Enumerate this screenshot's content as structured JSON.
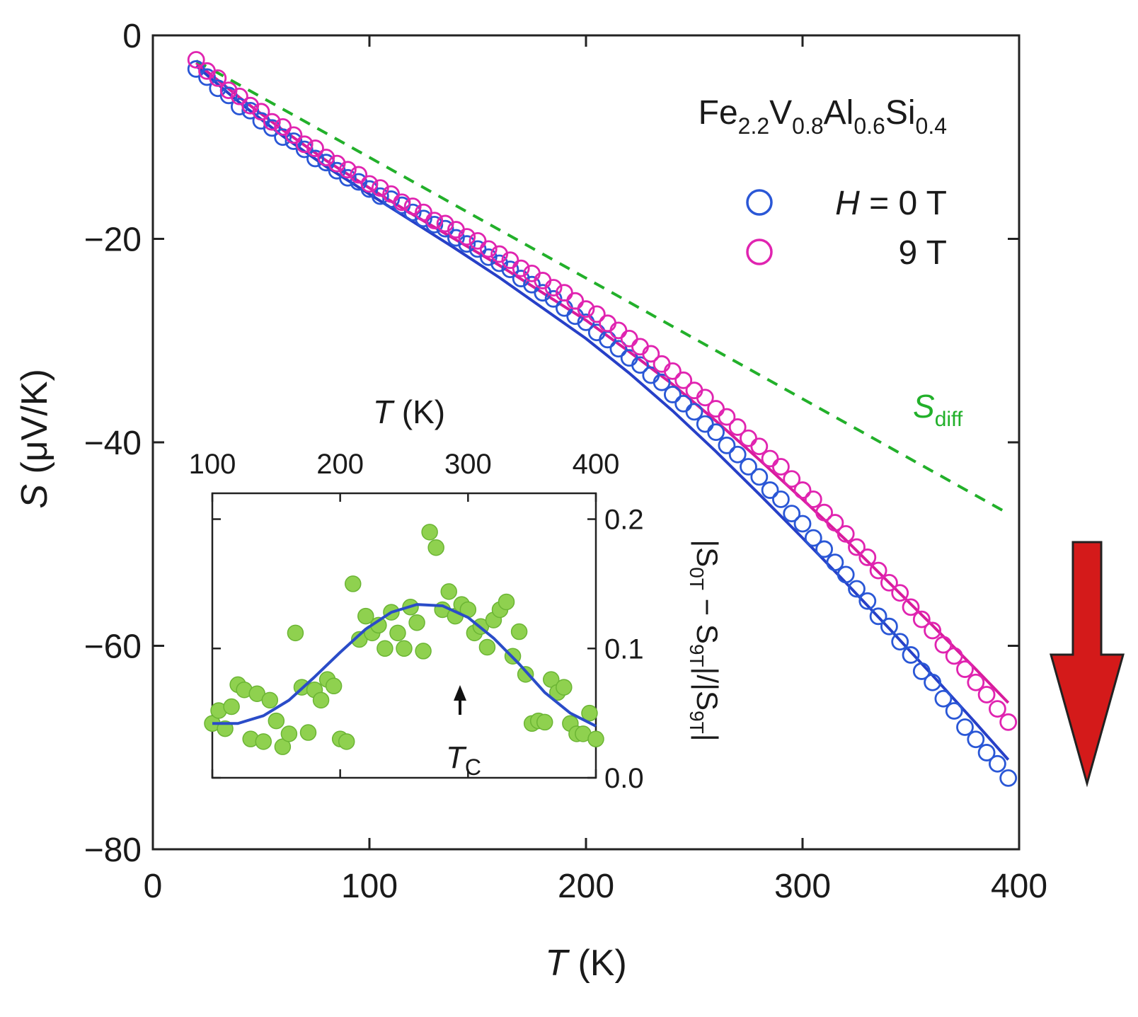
{
  "chart_data": [
    {
      "type": "scatter",
      "xlabel": "T (K)",
      "ylabel": "S (μV/K)",
      "xlim": [
        0,
        400
      ],
      "ylim": [
        -80,
        0
      ],
      "x_ticks": [
        0,
        100,
        200,
        300,
        400
      ],
      "y_ticks": [
        0,
        -20,
        -40,
        -60,
        -80
      ],
      "grid": false,
      "legend": "top-right",
      "annotations": {
        "compound": {
          "base": [
            "Fe",
            "V",
            "Al",
            "Si"
          ],
          "sub": [
            "2.2",
            "0.8",
            "0.6",
            "0.4"
          ]
        },
        "s_diff": {
          "main": "S",
          "sub": "diff",
          "color": "#22b02a"
        }
      },
      "legend_entries": [
        {
          "prefix": "H",
          "label": " = 0 T",
          "color": "#2a57d6"
        },
        {
          "prefix": "",
          "label": "9 T",
          "color": "#e024b0"
        }
      ],
      "series": [
        {
          "name": "H = 0 T",
          "color": "#2a57d6",
          "marker": "open-circle",
          "x": [
            20,
            25,
            30,
            35,
            40,
            45,
            50,
            55,
            60,
            65,
            70,
            75,
            80,
            85,
            90,
            95,
            100,
            105,
            110,
            115,
            120,
            125,
            130,
            135,
            140,
            145,
            150,
            155,
            160,
            165,
            170,
            175,
            180,
            185,
            190,
            195,
            200,
            205,
            210,
            215,
            220,
            225,
            230,
            235,
            240,
            245,
            250,
            255,
            260,
            265,
            270,
            275,
            280,
            285,
            290,
            295,
            300,
            305,
            310,
            315,
            320,
            325,
            330,
            335,
            340,
            345,
            350,
            355,
            360,
            365,
            370,
            375,
            380,
            385,
            390,
            395
          ],
          "y": [
            -3.3,
            -4.1,
            -5.2,
            -5.9,
            -7.0,
            -7.4,
            -8.4,
            -9.1,
            -10.0,
            -10.4,
            -11.2,
            -12.1,
            -12.5,
            -13.3,
            -14.0,
            -14.4,
            -15.1,
            -15.8,
            -16.1,
            -16.7,
            -17.4,
            -18.0,
            -18.6,
            -19.0,
            -19.9,
            -20.5,
            -21.0,
            -21.8,
            -22.4,
            -23.0,
            -23.9,
            -24.5,
            -25.3,
            -25.9,
            -26.8,
            -27.6,
            -28.2,
            -29.2,
            -29.9,
            -30.8,
            -31.7,
            -32.4,
            -33.4,
            -34.1,
            -35.3,
            -36.2,
            -37.0,
            -38.2,
            -39.0,
            -40.3,
            -41.2,
            -42.4,
            -43.4,
            -44.7,
            -45.6,
            -47.0,
            -48.0,
            -49.4,
            -50.5,
            -51.8,
            -53.0,
            -54.4,
            -55.6,
            -57.1,
            -58.1,
            -59.6,
            -60.9,
            -62.5,
            -63.6,
            -65.2,
            -66.4,
            -68.0,
            -69.2,
            -70.5,
            -71.6,
            -73.0
          ]
        },
        {
          "name": "9 T",
          "color": "#e024b0",
          "marker": "open-circle",
          "x": [
            20,
            25,
            30,
            35,
            40,
            45,
            50,
            55,
            60,
            65,
            70,
            75,
            80,
            85,
            90,
            95,
            100,
            105,
            110,
            115,
            120,
            125,
            130,
            135,
            140,
            145,
            150,
            155,
            160,
            165,
            170,
            175,
            180,
            185,
            190,
            195,
            200,
            205,
            210,
            215,
            220,
            225,
            230,
            235,
            240,
            245,
            250,
            255,
            260,
            265,
            270,
            275,
            280,
            285,
            290,
            295,
            300,
            305,
            310,
            315,
            320,
            325,
            330,
            335,
            340,
            345,
            350,
            355,
            360,
            365,
            370,
            375,
            380,
            385,
            390,
            395
          ],
          "y": [
            -2.4,
            -3.5,
            -4.2,
            -5.4,
            -6.0,
            -6.9,
            -7.5,
            -8.5,
            -9.0,
            -9.8,
            -10.7,
            -11.1,
            -12.0,
            -12.6,
            -13.2,
            -13.7,
            -14.6,
            -15.0,
            -15.6,
            -16.4,
            -16.8,
            -17.4,
            -18.2,
            -18.5,
            -19.1,
            -19.8,
            -20.2,
            -21.0,
            -21.5,
            -22.1,
            -22.9,
            -23.4,
            -24.1,
            -24.8,
            -25.3,
            -26.1,
            -26.9,
            -27.4,
            -28.3,
            -29.0,
            -29.8,
            -30.6,
            -31.3,
            -32.3,
            -33.0,
            -33.9,
            -34.9,
            -35.6,
            -36.7,
            -37.5,
            -38.5,
            -39.6,
            -40.4,
            -41.6,
            -42.4,
            -43.6,
            -44.7,
            -45.6,
            -46.9,
            -47.9,
            -49.0,
            -50.3,
            -51.3,
            -52.6,
            -53.8,
            -54.8,
            -56.2,
            -57.4,
            -58.5,
            -59.9,
            -61.0,
            -62.3,
            -63.6,
            -64.8,
            -66.2,
            -67.5
          ]
        },
        {
          "name": "",
          "style": "solid-line",
          "color": "#2740c8",
          "x": [
            20,
            40,
            60,
            80,
            100,
            120,
            140,
            160,
            180,
            200,
            220,
            240,
            260,
            280,
            300,
            320,
            340,
            360,
            380,
            395
          ],
          "y": [
            -3.0,
            -6.6,
            -9.9,
            -12.9,
            -15.6,
            -18.3,
            -21.0,
            -23.8,
            -26.8,
            -29.8,
            -33.2,
            -36.9,
            -40.9,
            -45.1,
            -49.4,
            -53.8,
            -58.3,
            -62.9,
            -67.6,
            -71.2
          ]
        },
        {
          "name": "",
          "style": "solid-line",
          "color": "#d81c9c",
          "x": [
            20,
            40,
            60,
            80,
            100,
            120,
            140,
            160,
            180,
            200,
            220,
            240,
            260,
            280,
            300,
            320,
            340,
            360,
            380,
            395
          ],
          "y": [
            -2.7,
            -6.1,
            -9.3,
            -12.3,
            -15.0,
            -17.6,
            -20.1,
            -22.6,
            -25.3,
            -28.0,
            -31.1,
            -34.3,
            -37.9,
            -41.7,
            -45.6,
            -49.6,
            -53.8,
            -58.0,
            -62.3,
            -65.6
          ]
        },
        {
          "name": "",
          "style": "dashed-line",
          "color": "#22b02a",
          "x": [
            20,
            395
          ],
          "y": [
            -2.5,
            -47.0
          ]
        }
      ]
    },
    {
      "type": "scatter",
      "position": "inset",
      "xlabel": "T (K)",
      "ylabel": "|S0T − S9T|/|S9T|",
      "xlim": [
        100,
        400
      ],
      "ylim": [
        0,
        0.22
      ],
      "x_ticks": [
        100,
        200,
        300,
        400
      ],
      "y_ticks": [
        0.0,
        0.1,
        0.2
      ],
      "y_tick_labels": [
        "0.0",
        "0.1",
        "0.2"
      ],
      "ylabel_parts": {
        "a": "|S",
        "a_sub": "0T",
        "b": " − S",
        "b_sub": "9T",
        "c": "|/|S",
        "c_sub": "9T",
        "d": "|"
      },
      "annotation": {
        "main": "T",
        "sub": "C",
        "x": 285,
        "y": 0.07
      },
      "series": [
        {
          "name": "",
          "color": "#8fd14f",
          "marker": "filled-circle",
          "x": [
            100,
            105,
            110,
            115,
            120,
            125,
            130,
            135,
            140,
            145,
            150,
            155,
            160,
            165,
            170,
            175,
            180,
            185,
            190,
            195,
            200,
            205,
            210,
            215,
            220,
            225,
            230,
            235,
            240,
            245,
            250,
            255,
            260,
            265,
            270,
            275,
            280,
            285,
            290,
            295,
            300,
            305,
            310,
            315,
            320,
            325,
            330,
            335,
            340,
            345,
            350,
            355,
            360,
            365,
            370,
            375,
            380,
            385,
            390,
            395,
            400
          ],
          "y": [
            0.042,
            0.052,
            0.038,
            0.055,
            0.072,
            0.068,
            0.03,
            0.065,
            0.028,
            0.06,
            0.044,
            0.024,
            0.034,
            0.112,
            0.07,
            0.035,
            0.068,
            0.06,
            0.076,
            0.071,
            0.03,
            0.028,
            0.15,
            0.107,
            0.125,
            0.112,
            0.118,
            0.1,
            0.128,
            0.112,
            0.1,
            0.132,
            0.12,
            0.098,
            0.19,
            0.178,
            0.13,
            0.144,
            0.125,
            0.134,
            0.13,
            0.112,
            0.117,
            0.101,
            0.122,
            0.13,
            0.136,
            0.094,
            0.113,
            0.08,
            0.042,
            0.044,
            0.043,
            0.076,
            0.066,
            0.07,
            0.042,
            0.034,
            0.034,
            0.05,
            0.03
          ]
        },
        {
          "name": "",
          "style": "solid-line",
          "color": "#2a4cc8",
          "x": [
            100,
            120,
            140,
            160,
            180,
            200,
            220,
            240,
            260,
            280,
            300,
            320,
            340,
            360,
            380,
            400
          ],
          "y": [
            0.042,
            0.042,
            0.048,
            0.06,
            0.078,
            0.097,
            0.115,
            0.128,
            0.134,
            0.133,
            0.124,
            0.108,
            0.088,
            0.066,
            0.05,
            0.04
          ]
        }
      ]
    }
  ]
}
